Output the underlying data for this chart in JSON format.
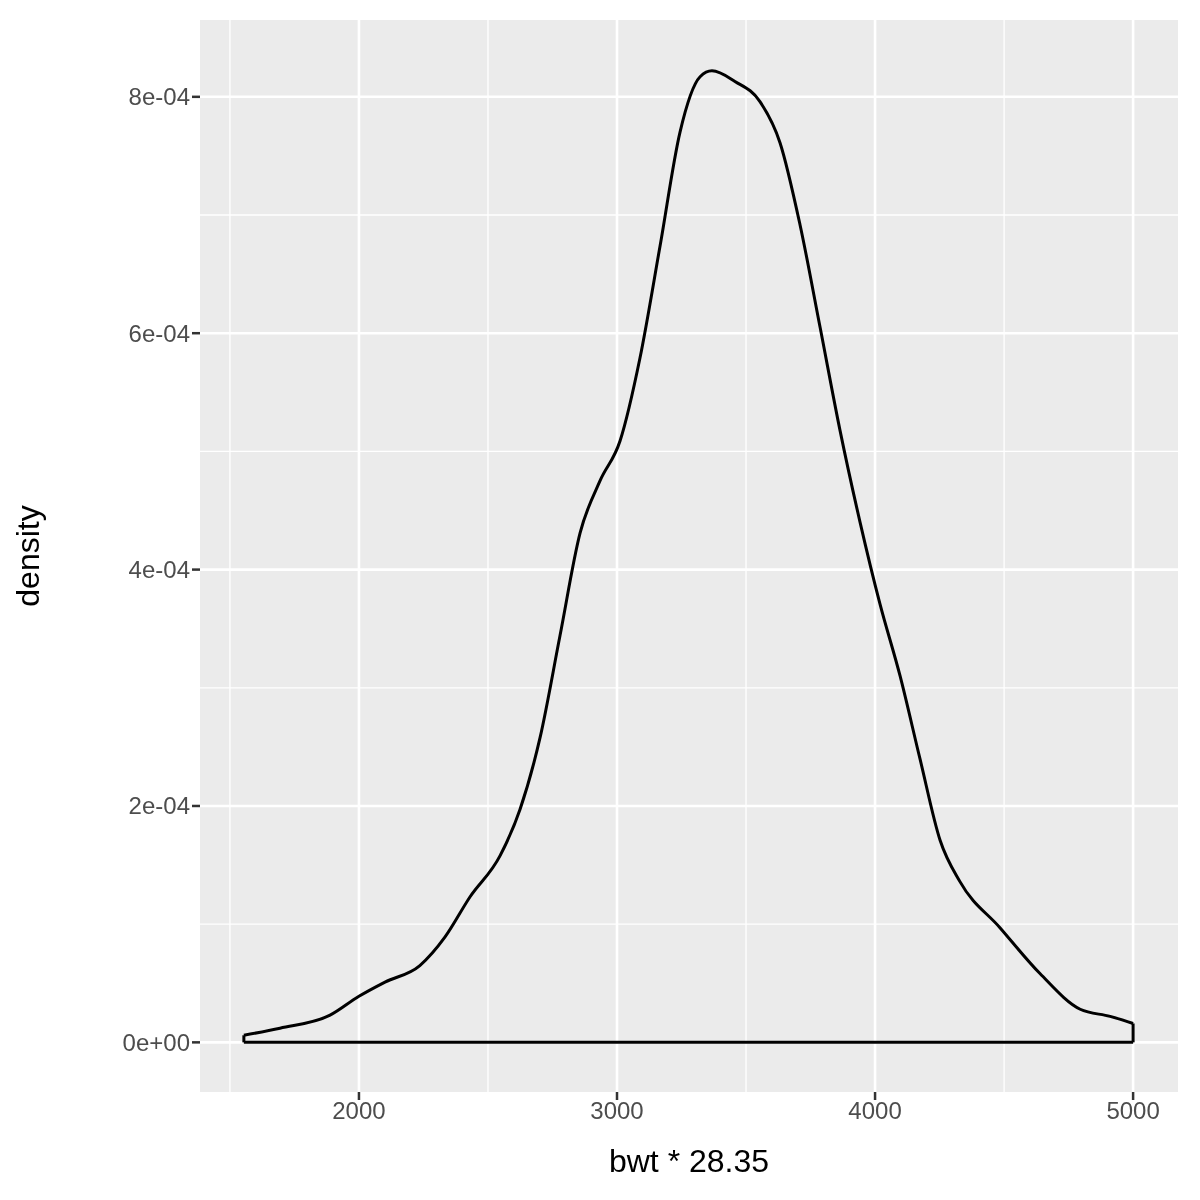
{
  "chart_data": {
    "type": "line",
    "xlabel": "bwt * 28.35",
    "ylabel": "density",
    "x": [
      1554,
      1694,
      1888,
      2000,
      2101,
      2236,
      2333,
      2430,
      2547,
      2624,
      2702,
      2779,
      2857,
      2934,
      3012,
      3089,
      3167,
      3244,
      3322,
      3368,
      3457,
      3554,
      3632,
      3709,
      3787,
      3864,
      3942,
      4019,
      4097,
      4174,
      4252,
      4329,
      4484,
      4640,
      4795,
      4911,
      5000
    ],
    "series": [
      {
        "color": "#000000",
        "values": [
          6e-06,
          1.2e-05,
          2.3e-05,
          3.9e-05,
          5.1e-05,
          6.5e-05,
          8.9e-05,
          0.000123,
          0.000158,
          0.000197,
          0.000258,
          0.000344,
          0.000431,
          0.000475,
          0.000509,
          0.000579,
          0.000674,
          0.00077,
          0.000817,
          0.000822,
          0.000813,
          0.000796,
          0.000761,
          0.000692,
          0.000605,
          0.000518,
          0.00044,
          0.000371,
          0.00031,
          0.00024,
          0.000171,
          0.000136,
          9.7e-05,
          5.8e-05,
          2.8e-05,
          2.2e-05,
          1.6e-05
        ]
      }
    ],
    "xlim": [
      1384,
      5174
    ],
    "xticks": [
      2000,
      3000,
      4000,
      5000
    ],
    "ylim": [
      -4.2e-05,
      0.000865
    ],
    "yticks": [
      {
        "value": 0,
        "label": "0e+00"
      },
      {
        "value": 0.0002,
        "label": "2e-04"
      },
      {
        "value": 0.0004,
        "label": "4e-04"
      },
      {
        "value": 0.0006,
        "label": "6e-04"
      },
      {
        "value": 0.0008,
        "label": "8e-04"
      }
    ],
    "grid": true,
    "legend": false
  }
}
